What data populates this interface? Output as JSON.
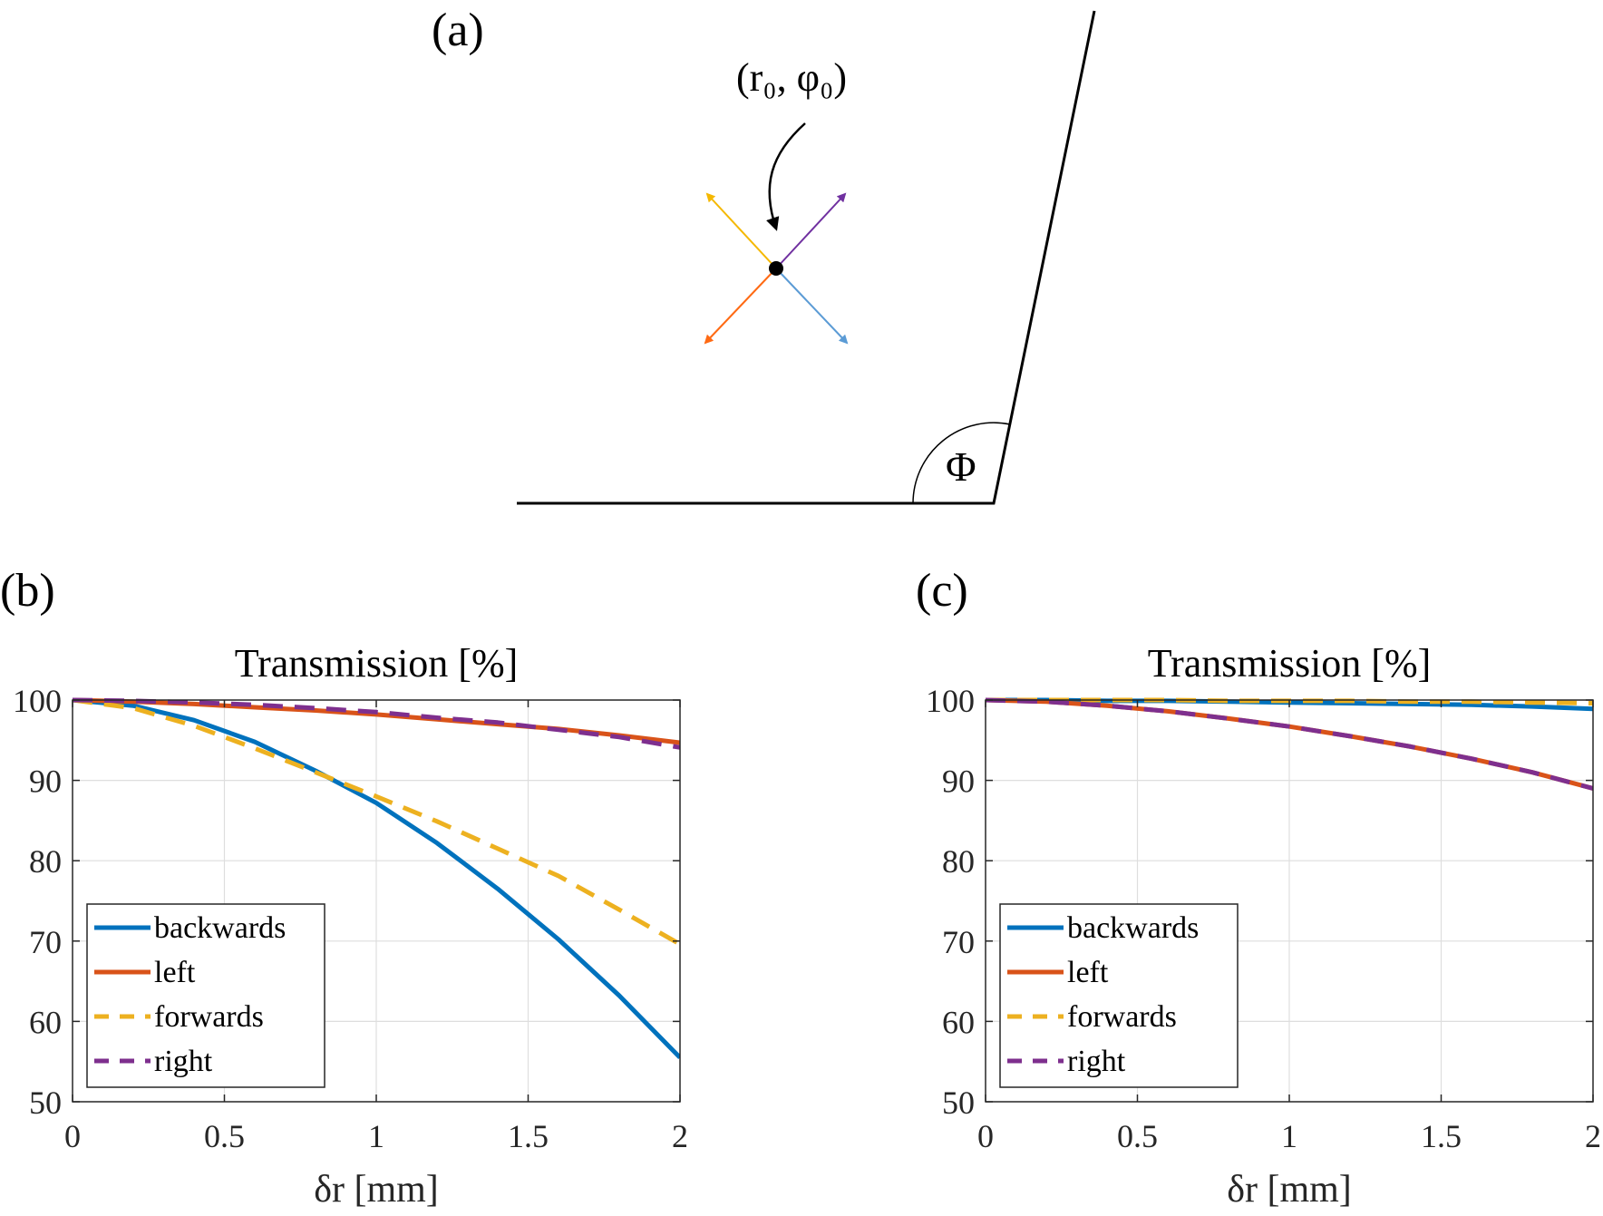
{
  "panel_a": {
    "label": "(a)",
    "point_label": "(r₀, φ₀)",
    "angle_label": "Φ",
    "arrows": [
      {
        "direction": "forwards",
        "color": "#f5b800"
      },
      {
        "direction": "right",
        "color": "#7030a0"
      },
      {
        "direction": "left",
        "color": "#ff6a13"
      },
      {
        "direction": "backwards",
        "color": "#5b9bd5"
      }
    ]
  },
  "chart_data": [
    {
      "panel": "(b)",
      "type": "line",
      "title": "Transmission [%]",
      "xlabel": "δr [mm]",
      "ylabel": "",
      "xlim": [
        0,
        2
      ],
      "ylim": [
        50,
        100
      ],
      "xticks": [
        0,
        0.5,
        1,
        1.5,
        2
      ],
      "xtick_labels": [
        "0",
        "0.5",
        "1",
        "1.5",
        "2"
      ],
      "yticks": [
        50,
        60,
        70,
        80,
        90,
        100
      ],
      "ytick_labels": [
        "50",
        "60",
        "70",
        "80",
        "90",
        "100"
      ],
      "grid": true,
      "legend_position": "bottom-left",
      "series": [
        {
          "name": "backwards",
          "color": "#0072bd",
          "dashed": false,
          "x": [
            0,
            0.2,
            0.4,
            0.6,
            0.8,
            1.0,
            1.2,
            1.4,
            1.6,
            1.8,
            2.0
          ],
          "y": [
            100,
            99.3,
            97.5,
            94.8,
            91.2,
            87.2,
            82.2,
            76.5,
            70.2,
            63.2,
            55.5
          ]
        },
        {
          "name": "left",
          "color": "#d95319",
          "dashed": false,
          "x": [
            0,
            0.2,
            0.4,
            0.6,
            0.8,
            1.0,
            1.2,
            1.4,
            1.6,
            1.8,
            2.0
          ],
          "y": [
            100,
            99.8,
            99.5,
            99.1,
            98.7,
            98.2,
            97.6,
            97.0,
            96.4,
            95.6,
            94.7
          ]
        },
        {
          "name": "forwards",
          "color": "#edb120",
          "dashed": true,
          "x": [
            0,
            0.2,
            0.4,
            0.6,
            0.8,
            1.0,
            1.2,
            1.4,
            1.6,
            1.8,
            2.0
          ],
          "y": [
            100,
            99.0,
            96.8,
            94.0,
            91.0,
            88.0,
            84.9,
            81.5,
            78.1,
            73.9,
            69.6
          ]
        },
        {
          "name": "right",
          "color": "#7e2f8e",
          "dashed": true,
          "x": [
            0,
            0.2,
            0.4,
            0.6,
            0.8,
            1.0,
            1.2,
            1.4,
            1.6,
            1.8,
            2.0
          ],
          "y": [
            100,
            99.9,
            99.7,
            99.4,
            99.0,
            98.5,
            97.8,
            97.2,
            96.3,
            95.4,
            94.1
          ]
        }
      ]
    },
    {
      "panel": "(c)",
      "type": "line",
      "title": "Transmission [%]",
      "xlabel": "δr [mm]",
      "ylabel": "",
      "xlim": [
        0,
        2
      ],
      "ylim": [
        50,
        100
      ],
      "xticks": [
        0,
        0.5,
        1,
        1.5,
        2
      ],
      "xtick_labels": [
        "0",
        "0.5",
        "1",
        "1.5",
        "2"
      ],
      "yticks": [
        50,
        60,
        70,
        80,
        90,
        100
      ],
      "ytick_labels": [
        "50",
        "60",
        "70",
        "80",
        "90",
        "100"
      ],
      "grid": true,
      "legend_position": "bottom-left",
      "series": [
        {
          "name": "backwards",
          "color": "#0072bd",
          "dashed": false,
          "x": [
            0,
            0.2,
            0.4,
            0.6,
            0.8,
            1.0,
            1.2,
            1.4,
            1.6,
            1.8,
            2.0
          ],
          "y": [
            100,
            100,
            99.9,
            99.9,
            99.8,
            99.7,
            99.6,
            99.5,
            99.4,
            99.2,
            98.9
          ]
        },
        {
          "name": "left",
          "color": "#d95319",
          "dashed": false,
          "x": [
            0,
            0.2,
            0.4,
            0.6,
            0.8,
            1.0,
            1.2,
            1.4,
            1.6,
            1.8,
            2.0
          ],
          "y": [
            100,
            99.8,
            99.3,
            98.6,
            97.7,
            96.7,
            95.5,
            94.2,
            92.7,
            91.0,
            89.0
          ]
        },
        {
          "name": "forwards",
          "color": "#edb120",
          "dashed": true,
          "x": [
            0,
            0.2,
            0.4,
            0.6,
            0.8,
            1.0,
            1.2,
            1.4,
            1.6,
            1.8,
            2.0
          ],
          "y": [
            100,
            100,
            100,
            100,
            99.9,
            99.9,
            99.9,
            99.8,
            99.8,
            99.7,
            99.6
          ]
        },
        {
          "name": "right",
          "color": "#7e2f8e",
          "dashed": true,
          "x": [
            0,
            0.2,
            0.4,
            0.6,
            0.8,
            1.0,
            1.2,
            1.4,
            1.6,
            1.8,
            2.0
          ],
          "y": [
            100,
            99.8,
            99.3,
            98.6,
            97.7,
            96.7,
            95.5,
            94.2,
            92.7,
            91.0,
            89.0
          ]
        }
      ]
    }
  ]
}
